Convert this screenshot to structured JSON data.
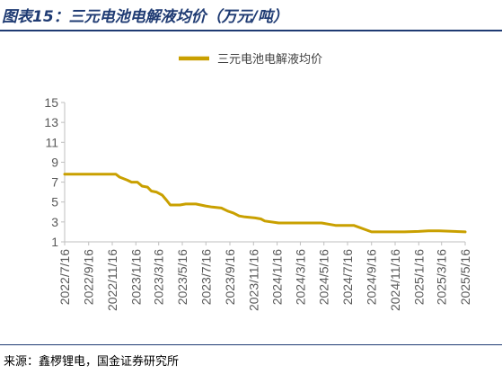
{
  "figure_title": "图表15：三元电池电解液均价（万元/吨）",
  "source_note": "来源：鑫椤锂电，国金证券研究所",
  "colors": {
    "series": "#C9A000",
    "axis": "#BFBFBF",
    "title": "#1F3B73"
  },
  "chart_data": {
    "type": "line",
    "title": "",
    "xlabel": "",
    "ylabel": "",
    "legend": "top-center",
    "grid": false,
    "ylim": [
      1,
      15
    ],
    "yticks": [
      "1",
      "3",
      "5",
      "7",
      "9",
      "11",
      "13",
      "15"
    ],
    "xlim": [
      "2022-07-16",
      "2025-05-16"
    ],
    "xticks": [
      "2022/7/16",
      "2022/9/16",
      "2022/11/16",
      "2023/1/16",
      "2023/3/16",
      "2023/5/16",
      "2023/7/16",
      "2023/9/16",
      "2023/11/16",
      "2024/1/16",
      "2024/3/16",
      "2024/5/16",
      "2024/7/16",
      "2024/9/16",
      "2024/11/16",
      "2025/1/16",
      "2025/3/16",
      "2025/5/16"
    ],
    "series": [
      {
        "name": "三元电池电解液均价",
        "color": "#C9A000",
        "x": [
          "2022-07-16",
          "2022-11-25",
          "2022-12-05",
          "2022-12-25",
          "2023-01-05",
          "2023-01-20",
          "2023-02-01",
          "2023-02-15",
          "2023-02-25",
          "2023-03-10",
          "2023-03-25",
          "2023-04-05",
          "2023-04-15",
          "2023-05-10",
          "2023-05-25",
          "2023-06-20",
          "2023-07-15",
          "2023-08-01",
          "2023-08-25",
          "2023-09-10",
          "2023-09-25",
          "2023-10-10",
          "2023-10-25",
          "2023-11-20",
          "2023-12-05",
          "2023-12-15",
          "2024-01-20",
          "2024-02-15",
          "2024-03-01",
          "2024-03-15",
          "2024-04-20",
          "2024-05-10",
          "2024-06-15",
          "2024-08-01",
          "2024-09-16",
          "2024-10-20",
          "2024-12-10",
          "2025-01-16",
          "2025-02-10",
          "2025-03-10",
          "2025-05-16"
        ],
        "y": [
          7.8,
          7.8,
          7.5,
          7.2,
          7.0,
          7.0,
          6.6,
          6.5,
          6.1,
          6.0,
          5.7,
          5.2,
          4.7,
          4.7,
          4.8,
          4.8,
          4.6,
          4.5,
          4.4,
          4.1,
          3.9,
          3.6,
          3.5,
          3.4,
          3.3,
          3.1,
          2.9,
          2.9,
          2.9,
          2.9,
          2.9,
          2.9,
          2.65,
          2.65,
          2.0,
          2.0,
          2.0,
          2.05,
          2.1,
          2.1,
          2.0
        ]
      }
    ]
  }
}
